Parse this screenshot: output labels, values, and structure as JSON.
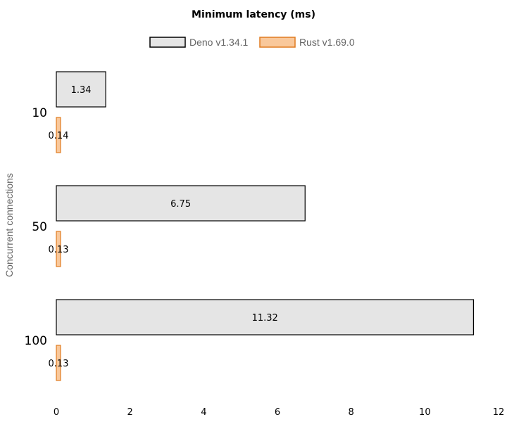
{
  "chart_data": {
    "type": "bar",
    "orientation": "horizontal",
    "title": "Minimum latency (ms)",
    "ylabel": "Concurrent connections",
    "xlabel": "",
    "categories": [
      "10",
      "50",
      "100"
    ],
    "series": [
      {
        "name": "Deno v1.34.1",
        "values": [
          1.34,
          6.75,
          11.32
        ],
        "color": "#e5e5e5",
        "stroke": "#000000"
      },
      {
        "name": "Rust v1.69.0",
        "values": [
          0.14,
          0.13,
          0.13
        ],
        "color": "#f9c89b",
        "stroke": "#e07b20"
      }
    ],
    "xlim": [
      0,
      12
    ],
    "xticks": [
      "0",
      "2",
      "4",
      "6",
      "8",
      "10",
      "12"
    ],
    "data_labels": [
      [
        "1.34",
        "6.75",
        "11.32"
      ],
      [
        "0.14",
        "0.13",
        "0.13"
      ]
    ],
    "grid": false,
    "legend": "top-center"
  }
}
